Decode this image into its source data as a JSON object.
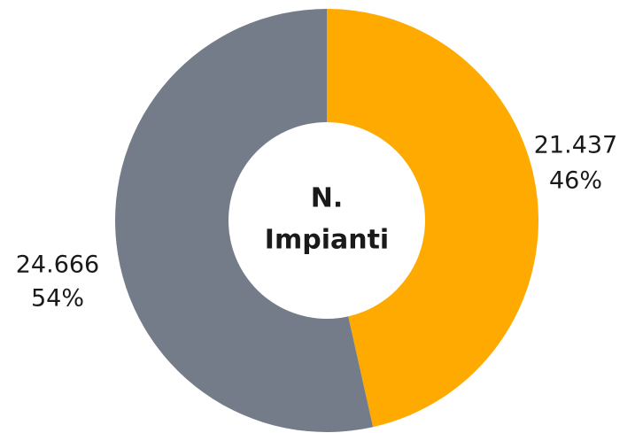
{
  "chart_data": {
    "type": "donut",
    "center_label": [
      "N.",
      "Impianti"
    ],
    "categories": [
      null,
      null
    ],
    "values": [
      21437,
      24666
    ],
    "value_labels": [
      "21.437",
      "24.666"
    ],
    "percentages": [
      46,
      54
    ],
    "percentage_labels": [
      "46%",
      "54%"
    ],
    "colors": [
      "#ffaa00",
      "#757c89"
    ],
    "start_angle": 0,
    "direction": "clockwise"
  }
}
